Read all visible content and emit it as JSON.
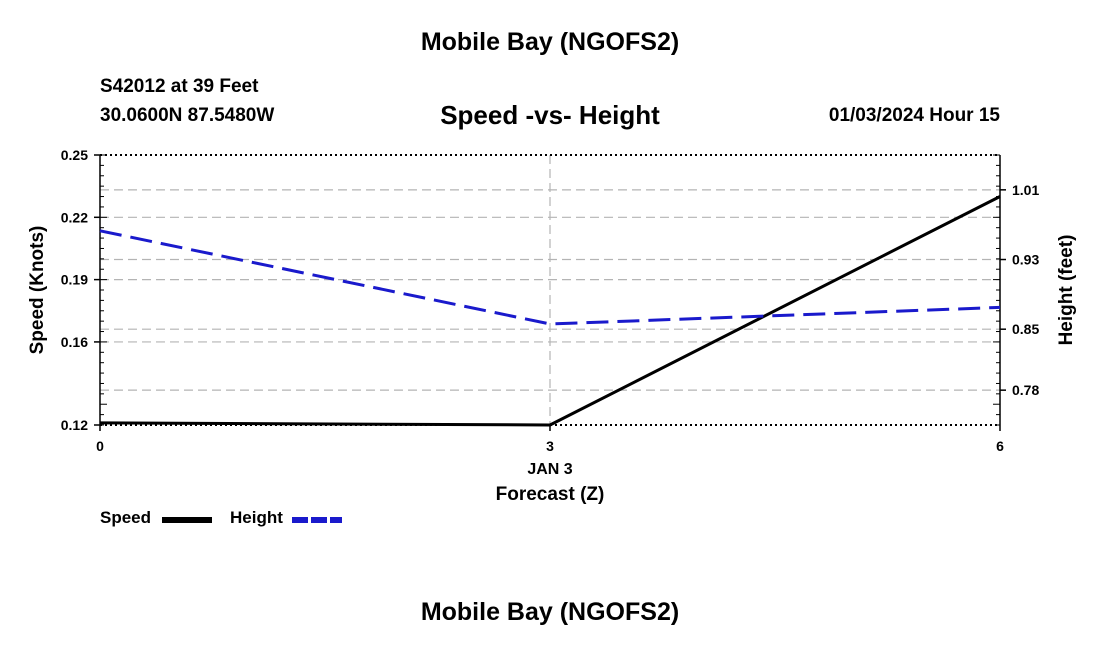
{
  "header": {
    "title": "Mobile Bay (NGOFS2)",
    "station": "S42012 at 39 Feet",
    "coords": "30.0600N  87.5480W",
    "subtitle": "Speed -vs- Height",
    "datetime": "01/03/2024 Hour 15"
  },
  "footer": {
    "title": "Mobile Bay (NGOFS2)"
  },
  "legend": {
    "speed_label": "Speed",
    "height_label": "Height"
  },
  "colors": {
    "speed": "#000000",
    "height": "#1a1acc",
    "grid": "#b4b4b4"
  },
  "chart_data": {
    "type": "line",
    "title": "Speed -vs- Height",
    "xlabel": "Forecast (Z)",
    "x_date_label": "JAN 3",
    "ylabel": "Speed (Knots)",
    "y2label": "Height (feet)",
    "xlim": [
      0,
      6
    ],
    "ylim": [
      0.12,
      0.25
    ],
    "y2lim": [
      0.74,
      1.05
    ],
    "x_ticks": [
      "0",
      "3",
      "6"
    ],
    "y_ticks": [
      "0.12",
      "0.16",
      "0.19",
      "0.22",
      "0.25"
    ],
    "y2_ticks": [
      "0.78",
      "0.85",
      "0.93",
      "1.01"
    ],
    "grid": true,
    "legend_position": "bottom-left",
    "series": [
      {
        "name": "Speed",
        "axis": "left",
        "style": "solid",
        "x": [
          0,
          3,
          6
        ],
        "y": [
          0.121,
          0.12,
          0.23
        ]
      },
      {
        "name": "Height",
        "axis": "right",
        "style": "dashed",
        "x": [
          0,
          3,
          6
        ],
        "y": [
          0.963,
          0.856,
          0.875
        ]
      }
    ]
  }
}
